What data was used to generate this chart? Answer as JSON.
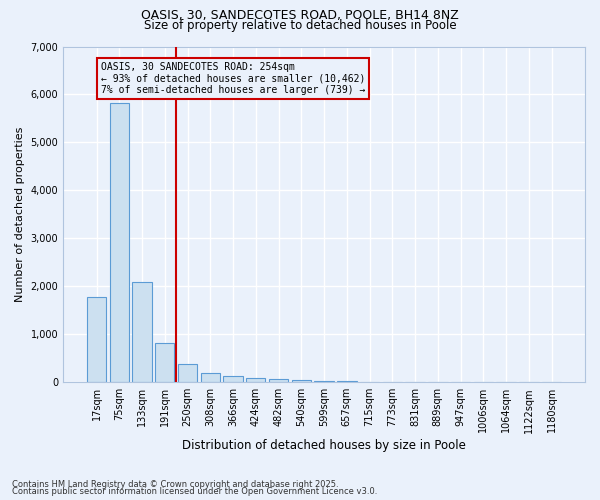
{
  "title1": "OASIS, 30, SANDECOTES ROAD, POOLE, BH14 8NZ",
  "title2": "Size of property relative to detached houses in Poole",
  "xlabel": "Distribution of detached houses by size in Poole",
  "ylabel": "Number of detached properties",
  "categories": [
    "17sqm",
    "75sqm",
    "133sqm",
    "191sqm",
    "250sqm",
    "308sqm",
    "366sqm",
    "424sqm",
    "482sqm",
    "540sqm",
    "599sqm",
    "657sqm",
    "715sqm",
    "773sqm",
    "831sqm",
    "889sqm",
    "947sqm",
    "1006sqm",
    "1064sqm",
    "1122sqm",
    "1180sqm"
  ],
  "values": [
    1780,
    5820,
    2090,
    820,
    370,
    200,
    120,
    80,
    65,
    45,
    30,
    15,
    10,
    5,
    3,
    2,
    1,
    1,
    0,
    0,
    0
  ],
  "bar_color": "#cce0f0",
  "bar_edge_color": "#5b9bd5",
  "vline_color": "#cc0000",
  "annotation_text": "OASIS, 30 SANDECOTES ROAD: 254sqm\n← 93% of detached houses are smaller (10,462)\n7% of semi-detached houses are larger (739) →",
  "annotation_box_edgecolor": "#cc0000",
  "ylim": [
    0,
    7000
  ],
  "yticks": [
    0,
    1000,
    2000,
    3000,
    4000,
    5000,
    6000,
    7000
  ],
  "background_color": "#eaf1fb",
  "grid_color": "#ffffff",
  "footer1": "Contains HM Land Registry data © Crown copyright and database right 2025.",
  "footer2": "Contains public sector information licensed under the Open Government Licence v3.0."
}
